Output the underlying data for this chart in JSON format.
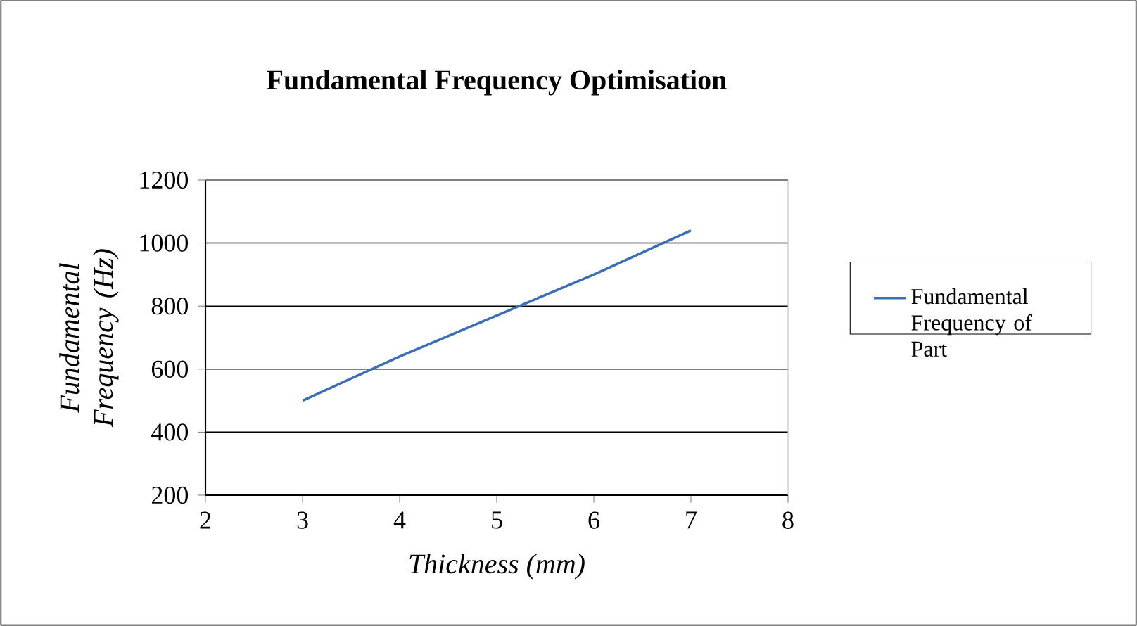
{
  "chart_data": {
    "type": "line",
    "title": "Fundamental Frequency Optimisation",
    "xlabel": "Thickness (mm)",
    "ylabel": "Fundamental Frequency (Hz)",
    "x": [
      3,
      4,
      5,
      6,
      7
    ],
    "series": [
      {
        "name": "Fundamental Frequency of Part",
        "color": "#3a6fb7",
        "values": [
          500,
          640,
          770,
          900,
          1040
        ]
      }
    ],
    "xlim": [
      2,
      8
    ],
    "ylim": [
      200,
      1200
    ],
    "xticks": [
      2,
      3,
      4,
      5,
      6,
      7,
      8
    ],
    "yticks": [
      200,
      400,
      600,
      800,
      1000,
      1200
    ],
    "grid": "y",
    "legend": "right",
    "marker": "none"
  }
}
